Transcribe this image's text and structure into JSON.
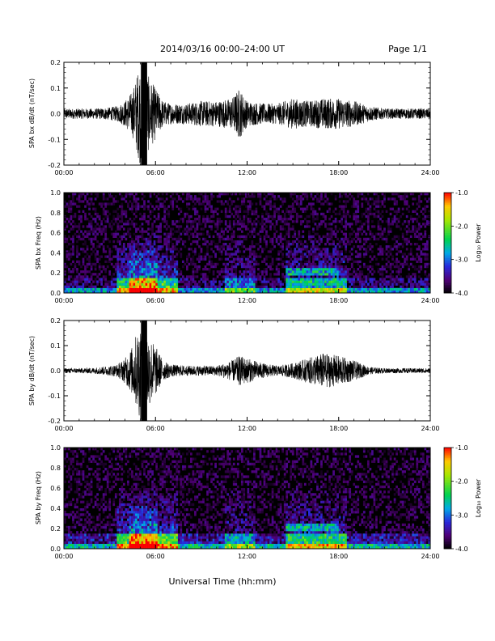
{
  "header": {
    "title": "2014/03/16  00:00–24:00 UT",
    "page": "Page 1/1"
  },
  "x_axis_label": "Universal Time (hh:mm)",
  "time_ticks": [
    "00:00",
    "06:00",
    "12:00",
    "18:00",
    "24:00"
  ],
  "colorbar": {
    "label": "Log₁₀ Power",
    "ticks": [
      "-1.0",
      "-2.0",
      "-3.0",
      "-4.0"
    ],
    "range": [
      -4.0,
      -1.0
    ]
  },
  "chart_data": [
    {
      "type": "line",
      "ylabel": "SPA bx dB/dt (nT/sec)",
      "xlim": [
        0,
        24
      ],
      "ylim": [
        -0.2,
        0.2
      ],
      "yticks": [
        "0.2",
        "0.1",
        "0.0",
        "-0.1",
        "-0.2"
      ],
      "envelope": {
        "hours": [
          0,
          1,
          2,
          3,
          3.5,
          4,
          4.5,
          5,
          5.3,
          5.5,
          6,
          6.5,
          7,
          8,
          9,
          10,
          11,
          11.5,
          12,
          13,
          14,
          15,
          16,
          17,
          18,
          19,
          20,
          21,
          22,
          23,
          24
        ],
        "amplitude": [
          0.02,
          0.02,
          0.02,
          0.025,
          0.03,
          0.05,
          0.09,
          0.2,
          0.21,
          0.15,
          0.1,
          0.05,
          0.04,
          0.04,
          0.05,
          0.05,
          0.06,
          0.1,
          0.05,
          0.04,
          0.04,
          0.06,
          0.05,
          0.06,
          0.06,
          0.05,
          0.03,
          0.02,
          0.02,
          0.02,
          0.02
        ]
      }
    },
    {
      "type": "heatmap",
      "ylabel": "SPA bx Freq (Hz)",
      "xlim": [
        0,
        24
      ],
      "ylim": [
        0,
        1.0
      ],
      "yticks": [
        "1.0",
        "0.8",
        "0.6",
        "0.4",
        "0.2",
        "0.0"
      ],
      "colorscale_log10_power": [
        -4.0,
        -1.0
      ]
    },
    {
      "type": "line",
      "ylabel": "SPA by dB/dt (nT/sec)",
      "xlim": [
        0,
        24
      ],
      "ylim": [
        -0.2,
        0.2
      ],
      "yticks": [
        "0.2",
        "0.1",
        "0.0",
        "-0.1",
        "-0.2"
      ],
      "envelope": {
        "hours": [
          0,
          1,
          2,
          3,
          3.5,
          4,
          4.5,
          5,
          5.3,
          5.5,
          6,
          6.5,
          7,
          8,
          9,
          10,
          11,
          11.5,
          12,
          13,
          14,
          15,
          16,
          17,
          18,
          19,
          20,
          21,
          22,
          23,
          24
        ],
        "amplitude": [
          0.01,
          0.01,
          0.012,
          0.02,
          0.025,
          0.05,
          0.1,
          0.2,
          0.21,
          0.15,
          0.1,
          0.04,
          0.025,
          0.02,
          0.02,
          0.02,
          0.04,
          0.06,
          0.05,
          0.03,
          0.02,
          0.03,
          0.05,
          0.07,
          0.06,
          0.04,
          0.015,
          0.01,
          0.01,
          0.01,
          0.01
        ]
      }
    },
    {
      "type": "heatmap",
      "ylabel": "SPA by Freq (Hz)",
      "xlim": [
        0,
        24
      ],
      "ylim": [
        0,
        1.0
      ],
      "yticks": [
        "1.0",
        "0.8",
        "0.6",
        "0.4",
        "0.2",
        "0.0"
      ],
      "colorscale_log10_power": [
        -4.0,
        -1.0
      ]
    }
  ]
}
